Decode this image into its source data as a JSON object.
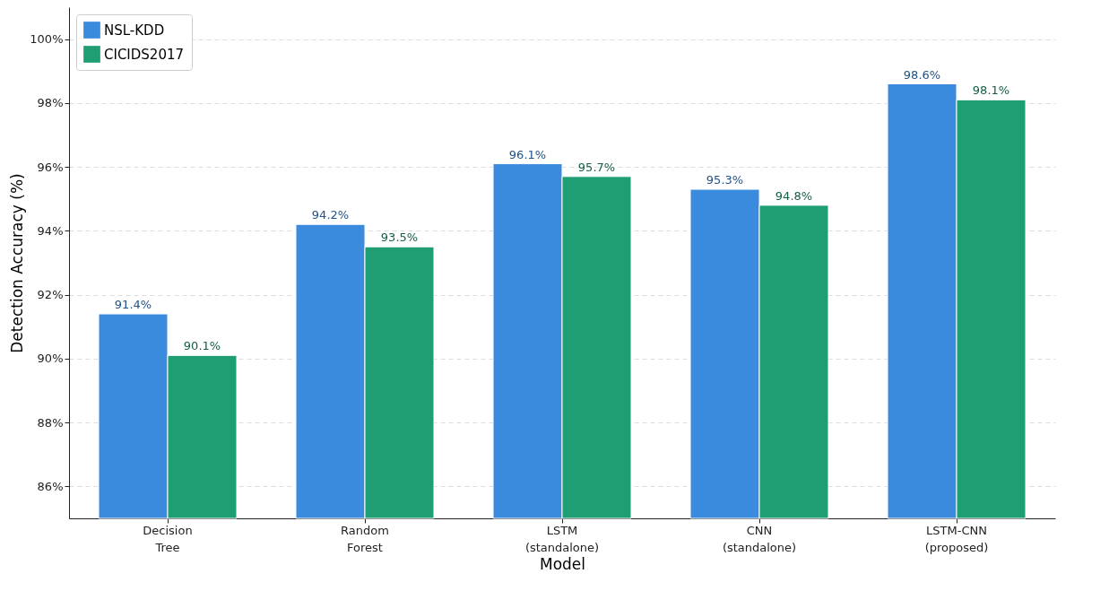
{
  "chart_data": {
    "type": "bar",
    "xlabel": "Model",
    "ylabel": "Detection Accuracy (%)",
    "categories": [
      "Decision\nTree",
      "Random\nForest",
      "LSTM\n(standalone)",
      "CNN\n(standalone)",
      "LSTM-CNN\n(proposed)"
    ],
    "series": [
      {
        "name": "NSL-KDD",
        "color": "#3a8ade",
        "values": [
          91.4,
          94.2,
          96.1,
          95.3,
          98.6
        ],
        "value_labels": [
          "91.4%",
          "94.2%",
          "96.1%",
          "95.3%",
          "98.6%"
        ]
      },
      {
        "name": "CICIDS2017",
        "color": "#1f9e74",
        "values": [
          90.1,
          93.5,
          95.7,
          94.8,
          98.1
        ],
        "value_labels": [
          "90.1%",
          "93.5%",
          "95.7%",
          "94.8%",
          "98.1%"
        ]
      }
    ],
    "ylim": [
      85,
      101
    ],
    "yticks": [
      {
        "value": 86,
        "label": "86%"
      },
      {
        "value": 88,
        "label": "88%"
      },
      {
        "value": 90,
        "label": "90%"
      },
      {
        "value": 92,
        "label": "92%"
      },
      {
        "value": 94,
        "label": "94%"
      },
      {
        "value": 96,
        "label": "96%"
      },
      {
        "value": 98,
        "label": "98%"
      },
      {
        "value": 100,
        "label": "100%"
      }
    ],
    "grid": "y",
    "legend": "top left"
  }
}
